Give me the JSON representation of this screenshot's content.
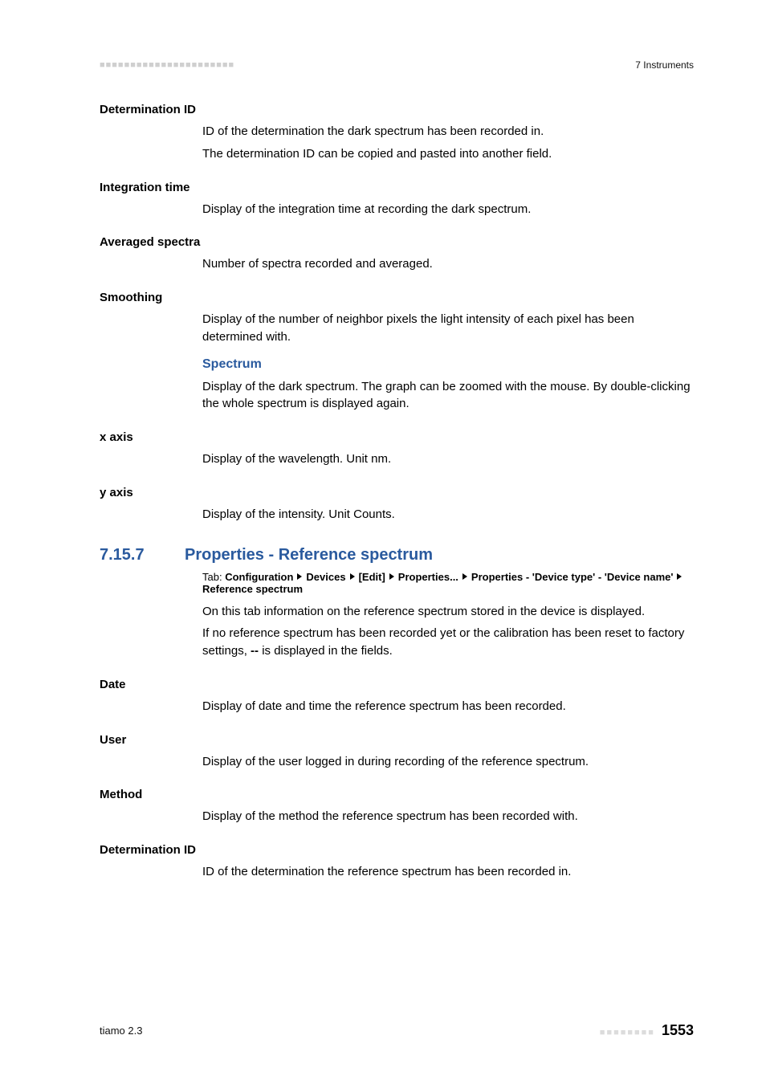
{
  "topbar": {
    "dots": "■■■■■■■■■■■■■■■■■■■■■■",
    "chapter": "7 Instruments"
  },
  "terms": {
    "det_id": {
      "label": "Determination ID",
      "p1": "ID of the determination the dark spectrum has been recorded in.",
      "p2": "The determination ID can be copied and pasted into another field."
    },
    "integration": {
      "label": "Integration time",
      "p1": "Display of the integration time at recording the dark spectrum."
    },
    "averaged": {
      "label": "Averaged spectra",
      "p1": "Number of spectra recorded and averaged."
    },
    "smoothing": {
      "label": "Smoothing",
      "p1": "Display of the number of neighbor pixels the light intensity of each pixel has been determined with."
    },
    "spectrum": {
      "head": "Spectrum",
      "p1": "Display of the dark spectrum. The graph can be zoomed with the mouse. By double-clicking the whole spectrum is displayed again."
    },
    "xaxis": {
      "label": "x axis",
      "p1": "Display of the wavelength. Unit nm."
    },
    "yaxis": {
      "label": "y axis",
      "p1": "Display of the intensity. Unit Counts."
    }
  },
  "section": {
    "num": "7.15.7",
    "title": "Properties - Reference spectrum",
    "tab": {
      "lead": "Tab: ",
      "s1": "Configuration",
      "s2": "Devices",
      "s3": "[Edit]",
      "s4": "Properties...",
      "s5": "Properties - 'Device type' - 'Device name'",
      "s6": "Reference spectrum"
    },
    "p1": "On this tab information on the reference spectrum stored in the device is displayed.",
    "p2a": "If no reference spectrum has been recorded yet or the calibration has been reset to factory settings, ",
    "p2b": "--",
    "p2c": " is displayed in the fields.",
    "date": {
      "label": "Date",
      "p1": "Display of date and time the reference spectrum has been recorded."
    },
    "user": {
      "label": "User",
      "p1": "Display of the user logged in during recording of the reference spectrum."
    },
    "method": {
      "label": "Method",
      "p1": "Display of the method the reference spectrum has been recorded with."
    },
    "detid2": {
      "label": "Determination ID",
      "p1": "ID of the determination the reference spectrum has been recorded in."
    }
  },
  "footer": {
    "left": "tiamo 2.3",
    "dots": "■■■■■■■■",
    "page": "1553"
  }
}
